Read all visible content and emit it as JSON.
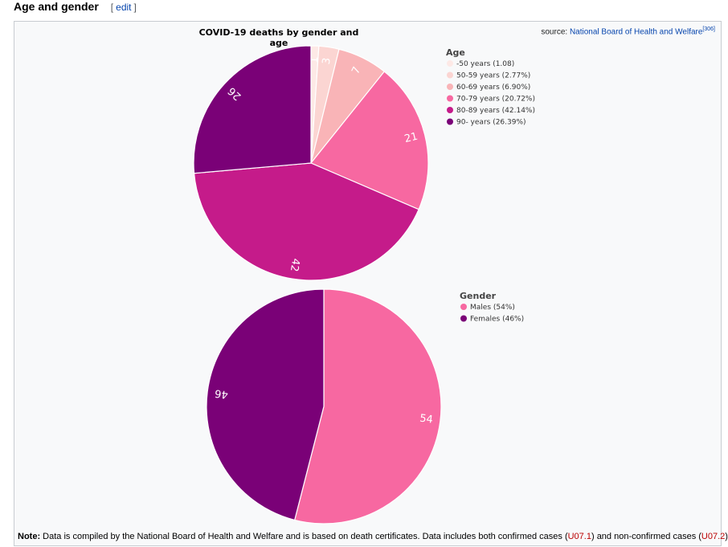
{
  "section": {
    "title": "Age and gender",
    "edit_open": "[",
    "edit_label": "edit",
    "edit_close": "]"
  },
  "header": {
    "title": "COVID-19 deaths by gender and age",
    "source_prefix": "source:",
    "source_link": "National Board of Health and Welfare",
    "source_ref": "[306]"
  },
  "chart_data": [
    {
      "type": "pie",
      "title": "COVID-19 deaths by gender and age",
      "legend_title": "Age",
      "legend_placement": "right",
      "slices": [
        {
          "name": "-50 years (1.08)",
          "value": 1.08,
          "label": "1",
          "color": "#fde9e6"
        },
        {
          "name": "50-59 years (2.77%)",
          "value": 2.77,
          "label": "3",
          "color": "#fbd5d2"
        },
        {
          "name": "60-69 years (6.90%)",
          "value": 6.9,
          "label": "7",
          "color": "#f9b4b7"
        },
        {
          "name": "70-79 years (20.72%)",
          "value": 20.72,
          "label": "21",
          "color": "#f768a1"
        },
        {
          "name": "80-89 years (42.14%)",
          "value": 42.14,
          "label": "42",
          "color": "#c51b8a"
        },
        {
          "name": "90- years (26.39%)",
          "value": 26.39,
          "label": "26",
          "color": "#7a0177"
        }
      ]
    },
    {
      "type": "pie",
      "legend_title": "Gender",
      "legend_placement": "right",
      "slices": [
        {
          "name": "Males (54%)",
          "value": 54,
          "label": "54",
          "color": "#f768a1"
        },
        {
          "name": "Females (46%)",
          "value": 46,
          "label": "46",
          "color": "#7a0177"
        }
      ]
    }
  ],
  "note": {
    "bold": "Note:",
    "text1": " Data is compiled by the National Board of Health and Welfare and is based on death certificates. Data includes both confirmed cases (",
    "code1": "U07.1",
    "text2": ") and non-confirmed cases (",
    "code2": "U07.2",
    "text3": ")"
  }
}
